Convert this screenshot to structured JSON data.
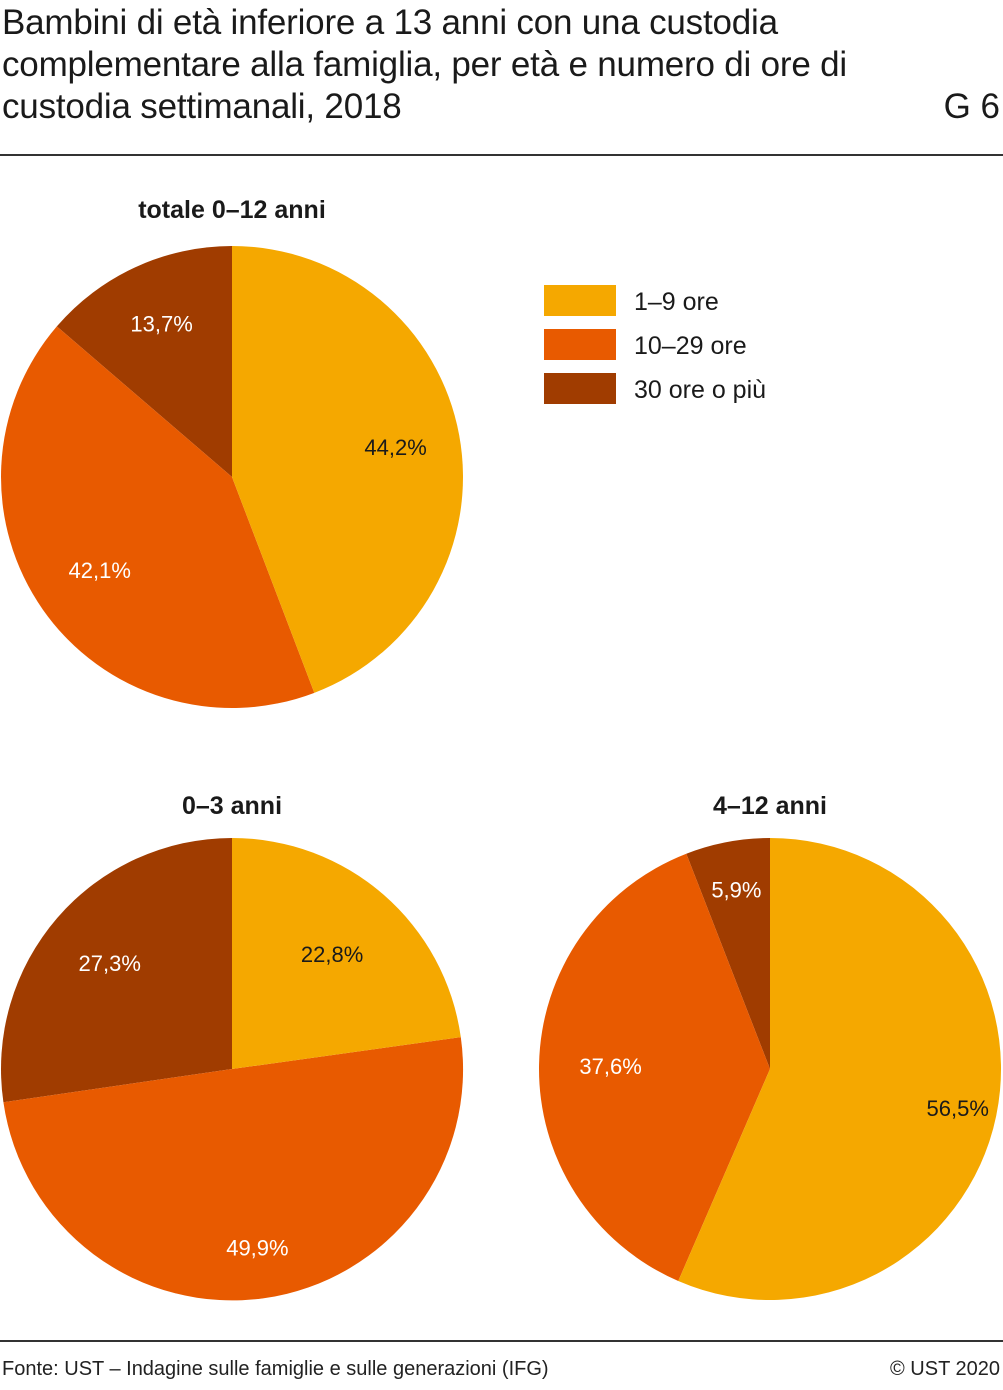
{
  "header": {
    "title": "Bambini di età inferiore a 13 anni con una custodia complementare alla famiglia, per età e numero di ore di custodia settimanali, 2018",
    "chart_number": "G 6"
  },
  "footer": {
    "source": "Fonte: UST – Indagine sulle famiglie e sulle generazioni (IFG)",
    "copyright": "© UST 2020"
  },
  "colors": {
    "1-9": "#f5a800",
    "10-29": "#e85a00",
    "30+": "#a03c00"
  },
  "chart_data": [
    {
      "type": "pie",
      "title": "totale 0–12 anni",
      "legend": "right",
      "series": [
        {
          "name": "1–9 ore",
          "value": 44.2,
          "label": "44,2%"
        },
        {
          "name": "10–29 ore",
          "value": 42.1,
          "label": "42,1%"
        },
        {
          "name": "30 ore o più",
          "value": 13.7,
          "label": "13,7%"
        }
      ]
    },
    {
      "type": "pie",
      "title": "0–3 anni",
      "series": [
        {
          "name": "1–9 ore",
          "value": 22.8,
          "label": "22,8%"
        },
        {
          "name": "10–29 ore",
          "value": 49.9,
          "label": "49,9%"
        },
        {
          "name": "30 ore o più",
          "value": 27.3,
          "label": "27,3%"
        }
      ]
    },
    {
      "type": "pie",
      "title": "4–12 anni",
      "series": [
        {
          "name": "1–9 ore",
          "value": 56.5,
          "label": "56,5%"
        },
        {
          "name": "10–29 ore",
          "value": 37.6,
          "label": "37,6%"
        },
        {
          "name": "30 ore o più",
          "value": 5.9,
          "label": "5,9%"
        }
      ]
    }
  ],
  "legend": [
    {
      "label": "1–9 ore",
      "key": "1-9"
    },
    {
      "label": "10–29 ore",
      "key": "10-29"
    },
    {
      "label": "30 ore o più",
      "key": "30+"
    }
  ]
}
